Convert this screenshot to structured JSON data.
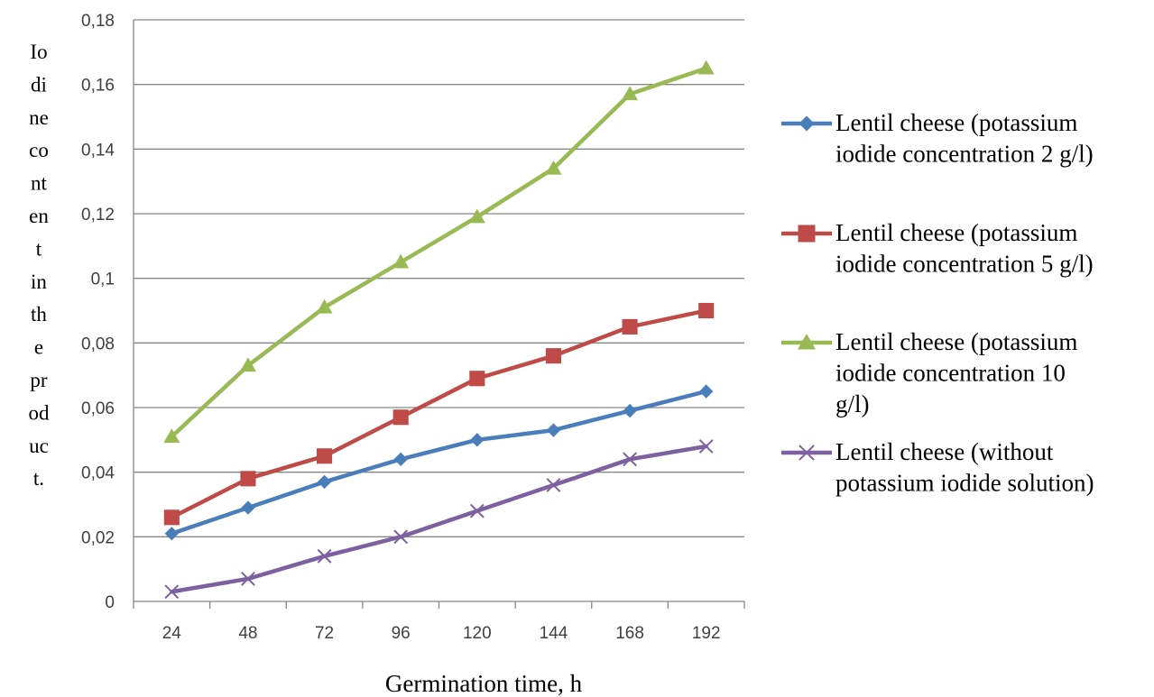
{
  "chart_data": {
    "type": "line",
    "x": [
      24,
      48,
      72,
      96,
      120,
      144,
      168,
      192
    ],
    "x_tick_labels": [
      "24",
      "48",
      "72",
      "96",
      "120",
      "144",
      "168",
      "192"
    ],
    "ylim": [
      0,
      0.18
    ],
    "y_ticks": [
      0,
      0.02,
      0.04,
      0.06,
      0.08,
      0.1,
      0.12,
      0.14,
      0.16,
      0.18
    ],
    "y_tick_labels": [
      "0",
      "0,02",
      "0,04",
      "0,06",
      "0,08",
      "0,1",
      "0,12",
      "0,14",
      "0,16",
      "0,18"
    ],
    "xlabel": "Germination time, h",
    "ylabel": "Iodine content in the product.",
    "ylabel_lines": [
      "Io",
      "di",
      "ne",
      "co",
      "nt",
      "en",
      "t",
      "in",
      "th",
      "e",
      "pr",
      "od",
      "uc",
      "t."
    ],
    "grid": "horizontal",
    "legend_position": "right",
    "series": [
      {
        "name": "Lentil cheese (potassium iodide concentration 2 g/l)",
        "legend_lines": [
          "Lentil cheese (potassium",
          "iodide concentration 2 g/l)"
        ],
        "color": "#4a7ebb",
        "marker": "diamond",
        "values": [
          0.021,
          0.029,
          0.037,
          0.044,
          0.05,
          0.053,
          0.059,
          0.065
        ]
      },
      {
        "name": "Lentil cheese (potassium iodide concentration 5 g/l)",
        "legend_lines": [
          "Lentil cheese (potassium",
          "iodide concentration 5 g/l)"
        ],
        "color": "#be4b48",
        "marker": "square",
        "values": [
          0.026,
          0.038,
          0.045,
          0.057,
          0.069,
          0.076,
          0.085,
          0.09
        ]
      },
      {
        "name": "Lentil cheese (potassium iodide concentration 10 g/l)",
        "legend_lines": [
          "Lentil cheese (potassium",
          "iodide concentration 10",
          "g/l)"
        ],
        "color": "#98b954",
        "marker": "triangle",
        "values": [
          0.051,
          0.073,
          0.091,
          0.105,
          0.119,
          0.134,
          0.157,
          0.165
        ]
      },
      {
        "name": "Lentil cheese (without potassium iodide solution)",
        "legend_lines": [
          "Lentil cheese (without",
          "potassium iodide solution)"
        ],
        "color": "#7d60a0",
        "marker": "x",
        "values": [
          0.003,
          0.007,
          0.014,
          0.02,
          0.028,
          0.036,
          0.044,
          0.048
        ]
      }
    ]
  }
}
